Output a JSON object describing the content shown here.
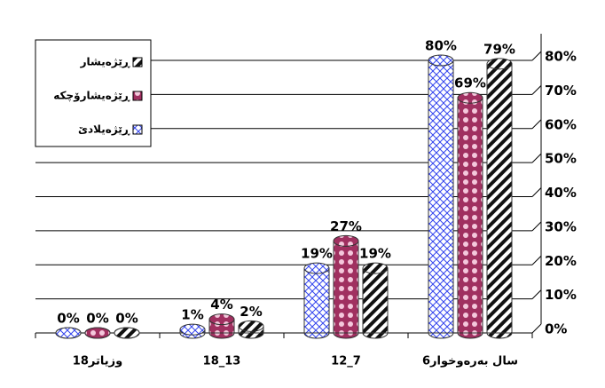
{
  "chart_data": {
    "type": "bar",
    "categories": [
      "18وزیاتر",
      "18_13",
      "12_7",
      "6سال بەرەوخوار"
    ],
    "series": [
      {
        "name": "ڕێژەیلادێ",
        "color": "#3344ee",
        "values": [
          0,
          1,
          19,
          80
        ],
        "value_labels": [
          "0%",
          "1%",
          "19%",
          "80%"
        ]
      },
      {
        "name": "ڕێژەیشارۆچکە",
        "color": "#a03060",
        "values": [
          0,
          4,
          27,
          69
        ],
        "value_labels": [
          "0%",
          "4%",
          "27%",
          "69%"
        ]
      },
      {
        "name": "ڕێژەیشار",
        "color": "#111111",
        "values": [
          0,
          2,
          19,
          79
        ],
        "value_labels": [
          "0%",
          "2%",
          "19%",
          "79%"
        ]
      }
    ],
    "ylim": [
      0,
      80
    ],
    "yticks": [
      {
        "value": 0,
        "label": "0%"
      },
      {
        "value": 10,
        "label": "10%"
      },
      {
        "value": 20,
        "label": "20%"
      },
      {
        "value": 30,
        "label": "30%"
      },
      {
        "value": 40,
        "label": "40%"
      },
      {
        "value": 50,
        "label": "50%"
      },
      {
        "value": 60,
        "label": "60%"
      },
      {
        "value": 70,
        "label": "70%"
      },
      {
        "value": 80,
        "label": "80%"
      }
    ],
    "grid": true,
    "legend": "upper left"
  }
}
